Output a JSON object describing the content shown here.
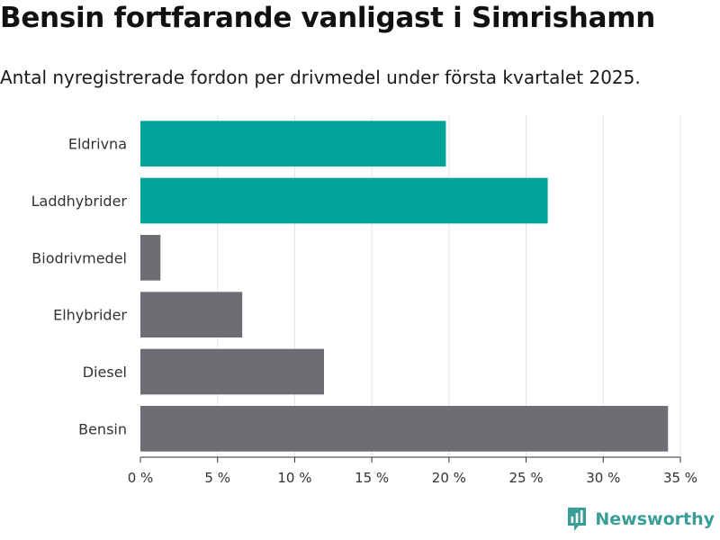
{
  "header": {
    "title": "Bensin fortfarande vanligast i Simrishamn",
    "subtitle": "Antal nyregistrerade fordon per drivmedel under första kvartalet 2025."
  },
  "brand": {
    "name": "Newsworthy",
    "icon": "newsworthy-logo-icon",
    "color": "#3a9e98"
  },
  "chart_data": {
    "type": "bar",
    "orientation": "horizontal",
    "categories": [
      "Eldrivna",
      "Laddhybrider",
      "Biodrivmedel",
      "Elhybrider",
      "Diesel",
      "Bensin"
    ],
    "values": [
      19.8,
      26.4,
      1.3,
      6.6,
      11.9,
      34.2
    ],
    "colors": [
      "#00a398",
      "#00a398",
      "#6e6d74",
      "#6e6d74",
      "#6e6d74",
      "#6e6d74"
    ],
    "xlim": [
      0,
      35
    ],
    "ticks": [
      {
        "value": 0,
        "label": "0 %"
      },
      {
        "value": 5,
        "label": "5 %"
      },
      {
        "value": 10,
        "label": "10 %"
      },
      {
        "value": 15,
        "label": "15 %"
      },
      {
        "value": 20,
        "label": "20 %"
      },
      {
        "value": 25,
        "label": "25 %"
      },
      {
        "value": 30,
        "label": "30 %"
      },
      {
        "value": 35,
        "label": "35 %"
      }
    ],
    "grid": true,
    "title": "Bensin fortfarande vanligast i Simrishamn",
    "xlabel": "",
    "ylabel": ""
  }
}
